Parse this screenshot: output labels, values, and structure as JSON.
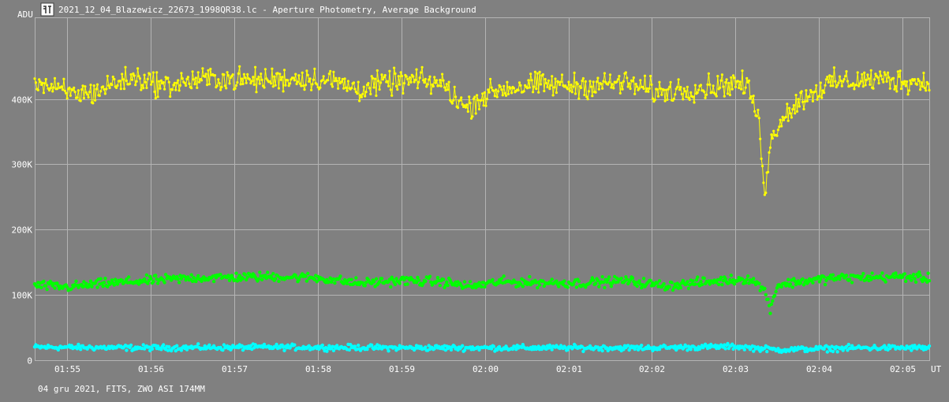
{
  "window": {
    "title": "2021_12_04_Blazewicz_22673_1998QR38.lc - Aperture Photometry, Average Background",
    "icon": "app-icon"
  },
  "footer": {
    "info": "04 gru 2021, FITS, ZWO ASI 174MM"
  },
  "chart_data": {
    "type": "line",
    "title": "2021_12_04_Blazewicz_22673_1998QR38.lc - Aperture Photometry, Average Background",
    "ylabel": "ADU",
    "xlabel": "UT",
    "x_ticks": [
      "01:55",
      "01:56",
      "01:57",
      "01:58",
      "01:59",
      "02:00",
      "02:01",
      "02:02",
      "02:03",
      "02:04",
      "02:05"
    ],
    "y_ticks": [
      "0",
      "100K",
      "200K",
      "300K",
      "400K"
    ],
    "x_range": [
      "01:54:37",
      "02:05:19"
    ],
    "ylim": [
      0,
      525000
    ],
    "grid": true,
    "series": [
      {
        "color": "#ffff00",
        "markers": true,
        "connected": true,
        "points": [
          [
            "01:54:37",
            430000
          ],
          [
            "01:54:50",
            415000
          ],
          [
            "01:55:05",
            408000
          ],
          [
            "01:55:20",
            410000
          ],
          [
            "01:55:35",
            425000
          ],
          [
            "01:55:50",
            433000
          ],
          [
            "01:56:10",
            420000
          ],
          [
            "01:56:30",
            428000
          ],
          [
            "01:56:50",
            432000
          ],
          [
            "01:57:10",
            428000
          ],
          [
            "01:57:30",
            430000
          ],
          [
            "01:57:50",
            432000
          ],
          [
            "01:58:10",
            428000
          ],
          [
            "01:58:30",
            415000
          ],
          [
            "01:58:50",
            425000
          ],
          [
            "01:59:10",
            428000
          ],
          [
            "01:59:30",
            423000
          ],
          [
            "01:59:40",
            400000
          ],
          [
            "01:59:47",
            385000
          ],
          [
            "01:59:55",
            400000
          ],
          [
            "02:00:10",
            415000
          ],
          [
            "02:00:40",
            422000
          ],
          [
            "02:01:10",
            420000
          ],
          [
            "02:01:40",
            425000
          ],
          [
            "02:02:05",
            410000
          ],
          [
            "02:02:20",
            415000
          ],
          [
            "02:02:40",
            418000
          ],
          [
            "02:03:00",
            425000
          ],
          [
            "02:03:10",
            415000
          ],
          [
            "02:03:17",
            360000
          ],
          [
            "02:03:21",
            260000
          ],
          [
            "02:03:25",
            330000
          ],
          [
            "02:03:32",
            370000
          ],
          [
            "02:03:40",
            385000
          ],
          [
            "02:03:50",
            405000
          ],
          [
            "02:04:10",
            425000
          ],
          [
            "02:04:40",
            430000
          ],
          [
            "02:05:00",
            428000
          ],
          [
            "02:05:19",
            425000
          ]
        ]
      },
      {
        "color": "#00ff00",
        "markers": true,
        "connected": false,
        "points": [
          [
            "01:54:37",
            115000
          ],
          [
            "01:55:00",
            112000
          ],
          [
            "01:55:30",
            118000
          ],
          [
            "01:56:00",
            122000
          ],
          [
            "01:56:30",
            126000
          ],
          [
            "01:57:00",
            127000
          ],
          [
            "01:57:30",
            128000
          ],
          [
            "01:58:00",
            126000
          ],
          [
            "01:58:30",
            118000
          ],
          [
            "01:59:00",
            122000
          ],
          [
            "01:59:30",
            120000
          ],
          [
            "01:59:50",
            113000
          ],
          [
            "02:00:10",
            120000
          ],
          [
            "02:00:40",
            119000
          ],
          [
            "02:01:10",
            118000
          ],
          [
            "02:01:40",
            122000
          ],
          [
            "02:02:10",
            114000
          ],
          [
            "02:02:40",
            120000
          ],
          [
            "02:03:10",
            125000
          ],
          [
            "02:03:20",
            110000
          ],
          [
            "02:03:25",
            80000
          ],
          [
            "02:03:30",
            115000
          ],
          [
            "02:03:45",
            120000
          ],
          [
            "02:04:10",
            126000
          ],
          [
            "02:04:40",
            127000
          ],
          [
            "02:05:00",
            128000
          ],
          [
            "02:05:19",
            125000
          ]
        ]
      },
      {
        "color": "#00ffff",
        "markers": true,
        "connected": false,
        "points": [
          [
            "01:54:37",
            20000
          ],
          [
            "01:56:00",
            19000
          ],
          [
            "01:57:30",
            20000
          ],
          [
            "01:59:00",
            19000
          ],
          [
            "02:00:30",
            19000
          ],
          [
            "02:02:00",
            19000
          ],
          [
            "02:03:00",
            21000
          ],
          [
            "02:03:30",
            16000
          ],
          [
            "02:04:30",
            19000
          ],
          [
            "02:05:19",
            19000
          ]
        ]
      }
    ]
  }
}
